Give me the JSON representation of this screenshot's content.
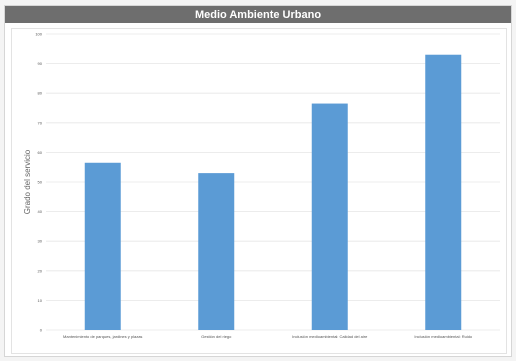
{
  "chart_data": {
    "type": "bar",
    "title": "Medio Ambiente Urbano",
    "ylabel": "Grado del servicio",
    "xlabel": "",
    "categories": [
      "Mantenimiento de parques, jardines y plazas",
      "Gestión del riego",
      "Inclusión medioambiental: Calidad del aire",
      "Inclusión medioambiental: Ruido"
    ],
    "values": [
      56.5,
      53,
      76.5,
      93
    ],
    "ylim": [
      0,
      100
    ],
    "yticks": [
      0,
      10,
      20,
      30,
      40,
      50,
      60,
      70,
      80,
      90,
      100
    ],
    "grid": true,
    "bar_color": "#5b9bd5",
    "gridline_color": "#e6e6e6",
    "title_bar_color": "#6e6e6e"
  }
}
